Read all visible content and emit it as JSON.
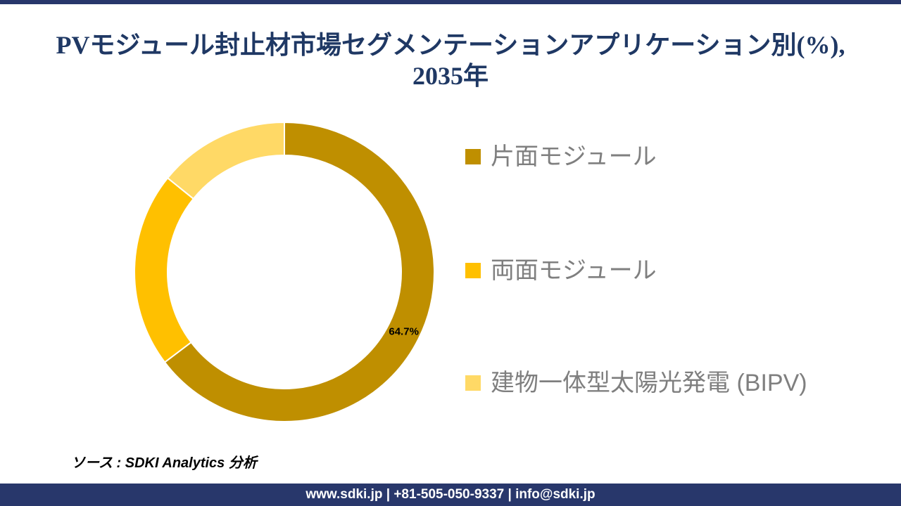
{
  "colors": {
    "accent_navy": "#28376B",
    "title_navy": "#1F3864",
    "legend_text_gray": "#7F7F7F",
    "data_label_black": "#000000",
    "segment_separator_white": "#FFFFFF"
  },
  "title": {
    "line1": "PVモジュール封止材市場セグメンテーションアプリケーション別(%),",
    "line2": "2035年"
  },
  "chart_data": {
    "type": "pie",
    "subtype": "donut",
    "title": "PVモジュール封止材市場セグメンテーションアプリケーション別(%), 2035年",
    "categories": [
      "片面モジュール",
      "両面モジュール",
      "建物一体型太陽光発電 (BIPV)"
    ],
    "values": [
      64.7,
      21.1,
      14.2
    ],
    "colors": [
      "#BF8F00",
      "#FFC000",
      "#FFD966"
    ],
    "data_labels": [
      "64.7%",
      "",
      ""
    ],
    "start_angle_deg": 0,
    "direction": "clockwise",
    "inner_radius_ratio": 0.78,
    "legend_position": "right",
    "grid": false
  },
  "source": {
    "text": "ソース : SDKI Analytics 分析"
  },
  "footer": {
    "text": "www.sdki.jp | +81-505-050-9337 | info@sdki.jp"
  }
}
